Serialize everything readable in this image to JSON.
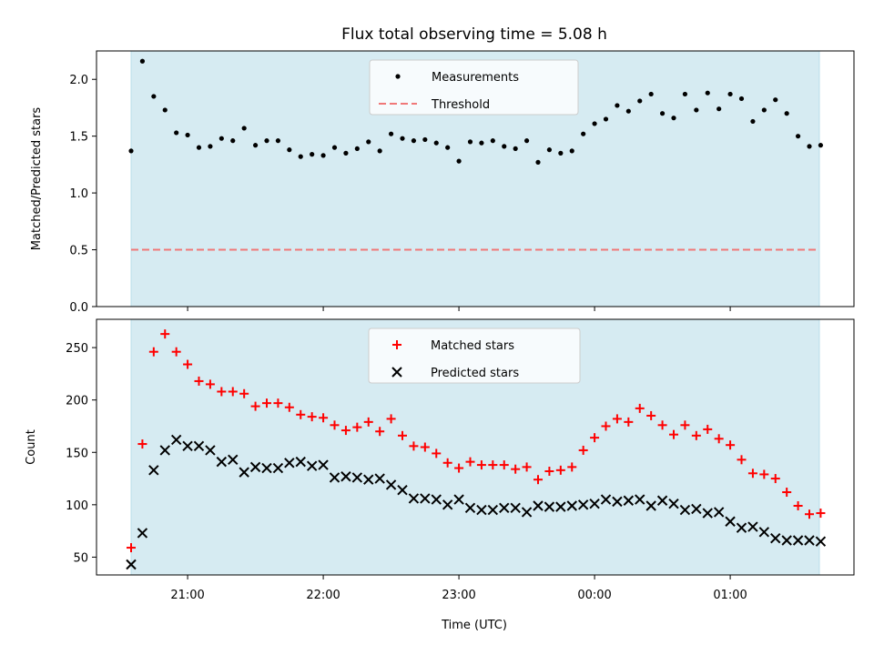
{
  "chart_data": {
    "title": "Flux total observing time = 5.08 h",
    "x": {
      "label": "Time (UTC)",
      "ticks": [
        "21:00",
        "22:00",
        "23:00",
        "00:00",
        "01:00"
      ],
      "range_utc": [
        "20:35",
        "21:56 (+1d 01:56)"
      ]
    },
    "panels": [
      {
        "type": "scatter",
        "ylabel": "Matched/Predicted stars",
        "ylim": [
          0,
          2.25
        ],
        "yticks": [
          "0.0",
          "0.5",
          "1.0",
          "1.5",
          "2.0"
        ],
        "legend_position": "top-center",
        "series": [
          {
            "name": "Measurements",
            "marker": "dot",
            "color": "#000000",
            "values": [
              1.37,
              2.16,
              1.85,
              1.73,
              1.53,
              1.51,
              1.4,
              1.41,
              1.48,
              1.46,
              1.57,
              1.42,
              1.46,
              1.46,
              1.38,
              1.32,
              1.34,
              1.33,
              1.4,
              1.35,
              1.39,
              1.45,
              1.37,
              1.52,
              1.48,
              1.46,
              1.47,
              1.44,
              1.4,
              1.28,
              1.45,
              1.44,
              1.46,
              1.41,
              1.39,
              1.46,
              1.27,
              1.38,
              1.35,
              1.37,
              1.52,
              1.61,
              1.65,
              1.77,
              1.72,
              1.81,
              1.87,
              1.7,
              1.66,
              1.87,
              1.73,
              1.88,
              1.74,
              1.87,
              1.83,
              1.63,
              1.73,
              1.82,
              1.7,
              1.5,
              1.41,
              1.42
            ]
          },
          {
            "name": "Threshold",
            "line_style": "dashed",
            "color": "#f07878",
            "value": 0.5
          }
        ]
      },
      {
        "type": "scatter",
        "ylabel": "Count",
        "ylim": [
          33,
          277
        ],
        "yticks": [
          "50",
          "100",
          "150",
          "200",
          "250"
        ],
        "legend_position": "top-center",
        "series": [
          {
            "name": "Matched stars",
            "marker": "plus",
            "color": "#ff0000",
            "values": [
              59,
              158,
              246,
              263,
              246,
              234,
              218,
              215,
              208,
              208,
              206,
              194,
              197,
              197,
              193,
              186,
              184,
              183,
              176,
              171,
              174,
              179,
              170,
              182,
              166,
              156,
              155,
              149,
              140,
              135,
              141,
              138,
              138,
              138,
              134,
              136,
              124,
              132,
              133,
              136,
              152,
              164,
              175,
              182,
              179,
              192,
              185,
              176,
              167,
              176,
              166,
              172,
              163,
              157,
              143,
              130,
              129,
              125,
              112,
              99,
              91,
              92
            ]
          },
          {
            "name": "Predicted stars",
            "marker": "x",
            "color": "#000000",
            "values": [
              43,
              73,
              133,
              152,
              162,
              156,
              156,
              152,
              141,
              143,
              131,
              136,
              135,
              135,
              140,
              141,
              137,
              138,
              126,
              127,
              126,
              124,
              125,
              119,
              114,
              106,
              106,
              105,
              100,
              105,
              97,
              95,
              95,
              97,
              97,
              93,
              99,
              98,
              98,
              99,
              100,
              101,
              105,
              103,
              104,
              105,
              99,
              104,
              101,
              95,
              96,
              92,
              93,
              84,
              78,
              79,
              74,
              68,
              66,
              66,
              66,
              65
            ]
          }
        ]
      }
    ],
    "shaded_band_color": "#add8e6",
    "point_count": 62,
    "first_point_time": "20:35",
    "sample_interval_min": 5
  }
}
